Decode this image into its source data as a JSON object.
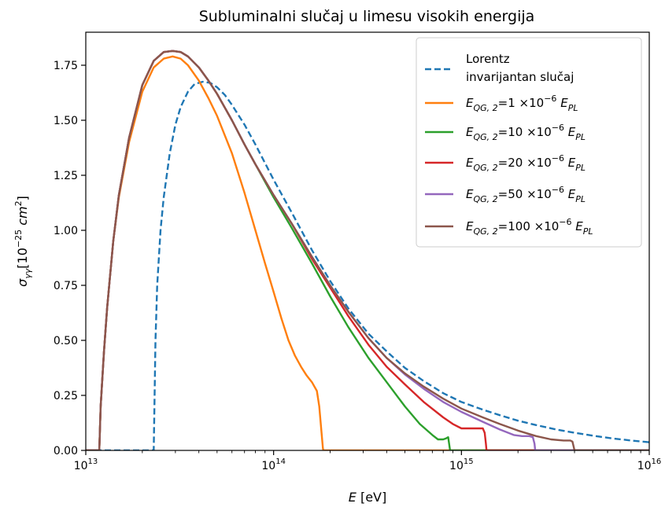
{
  "chart_data": {
    "type": "line",
    "title": "Subluminalni slučaj u limesu visokih energija",
    "xlabel": {
      "symbol": "E",
      "unit": " [eV]"
    },
    "ylabel": {
      "sym": "σ",
      "sub": "γγ",
      "pre": "[10",
      "exp": "−25",
      "unit": " cm",
      "unit_exp": "2",
      "close": "]"
    },
    "x_scale": "log",
    "xlim": [
      10000000000000.0,
      1e+16
    ],
    "ylim": [
      0,
      1.9
    ],
    "x_ticks": [
      {
        "base": "10",
        "exp": "13",
        "value": 10000000000000.0
      },
      {
        "base": "10",
        "exp": "14",
        "value": 100000000000000.0
      },
      {
        "base": "10",
        "exp": "15",
        "value": 1000000000000000.0
      },
      {
        "base": "10",
        "exp": "16",
        "value": 1e+16
      }
    ],
    "y_ticks": [
      "0.00",
      "0.25",
      "0.50",
      "0.75",
      "1.00",
      "1.25",
      "1.50",
      "1.75"
    ],
    "legend_position": "top-right",
    "series": [
      {
        "name": [
          "Lorentz",
          "invarijantan slučaj"
        ],
        "color": "#1f77b4",
        "dash": true,
        "x": [
          10000000000000.0,
          23000000000000.0,
          23200000000000.0,
          23500000000000.0,
          24000000000000.0,
          25000000000000.0,
          26000000000000.0,
          28000000000000.0,
          30000000000000.0,
          32000000000000.0,
          35000000000000.0,
          38000000000000.0,
          42000000000000.0,
          46000000000000.0,
          50000000000000.0,
          55000000000000.0,
          60000000000000.0,
          70000000000000.0,
          80000000000000.0,
          100000000000000.0,
          125000000000000.0,
          160000000000000.0,
          200000000000000.0,
          250000000000000.0,
          320000000000000.0,
          400000000000000.0,
          500000000000000.0,
          630000000000000.0,
          800000000000000.0,
          1000000000000000.0,
          1300000000000000.0,
          1600000000000000.0,
          2000000000000000.0,
          2500000000000000.0,
          3200000000000000.0,
          4000000000000000.0,
          5000000000000000.0,
          6300000000000000.0,
          8000000000000000.0,
          1e+16
        ],
        "y": [
          0,
          0,
          0.2,
          0.5,
          0.75,
          1.0,
          1.15,
          1.35,
          1.48,
          1.56,
          1.63,
          1.665,
          1.675,
          1.67,
          1.65,
          1.615,
          1.57,
          1.48,
          1.39,
          1.23,
          1.08,
          0.91,
          0.77,
          0.645,
          0.53,
          0.45,
          0.375,
          0.315,
          0.26,
          0.22,
          0.185,
          0.16,
          0.135,
          0.115,
          0.095,
          0.08,
          0.067,
          0.055,
          0.045,
          0.037
        ]
      },
      {
        "name": {
          "sym": "E",
          "sub": "QG, 2",
          "val": "=1 ×10",
          "exp": "−6",
          "unit": "E",
          "unit_sub": "PL"
        },
        "color": "#ff7f0e",
        "x": [
          10000000000000.0,
          11800000000000.0,
          12000000000000.0,
          12500000000000.0,
          13000000000000.0,
          14000000000000.0,
          15000000000000.0,
          17000000000000.0,
          20000000000000.0,
          23000000000000.0,
          26000000000000.0,
          29000000000000.0,
          32000000000000.0,
          35000000000000.0,
          40000000000000.0,
          45000000000000.0,
          50000000000000.0,
          60000000000000.0,
          70000000000000.0,
          80000000000000.0,
          90000000000000.0,
          100000000000000.0,
          110000000000000.0,
          120000000000000.0,
          130000000000000.0,
          140000000000000.0,
          150000000000000.0,
          160000000000000.0,
          170000000000000.0,
          175000000000000.0,
          180000000000000.0,
          183000000000000.0,
          184000000000000.0,
          1e+16
        ],
        "y": [
          0,
          0,
          0.2,
          0.45,
          0.65,
          0.95,
          1.15,
          1.4,
          1.63,
          1.74,
          1.78,
          1.79,
          1.78,
          1.75,
          1.68,
          1.6,
          1.52,
          1.35,
          1.17,
          1.0,
          0.85,
          0.72,
          0.6,
          0.5,
          0.43,
          0.38,
          0.34,
          0.31,
          0.27,
          0.2,
          0.08,
          0.01,
          0,
          0
        ]
      },
      {
        "name": {
          "sym": "E",
          "sub": "QG, 2",
          "val": "=10 ×10",
          "exp": "−6",
          "unit": "E",
          "unit_sub": "PL"
        },
        "color": "#2ca02c",
        "x": [
          10000000000000.0,
          11800000000000.0,
          12000000000000.0,
          12500000000000.0,
          13000000000000.0,
          14000000000000.0,
          15000000000000.0,
          17000000000000.0,
          20000000000000.0,
          23000000000000.0,
          26000000000000.0,
          29000000000000.0,
          32000000000000.0,
          35000000000000.0,
          40000000000000.0,
          45000000000000.0,
          50000000000000.0,
          60000000000000.0,
          70000000000000.0,
          80000000000000.0,
          100000000000000.0,
          125000000000000.0,
          160000000000000.0,
          200000000000000.0,
          250000000000000.0,
          320000000000000.0,
          400000000000000.0,
          500000000000000.0,
          600000000000000.0,
          700000000000000.0,
          750000000000000.0,
          800000000000000.0,
          830000000000000.0,
          850000000000000.0,
          860000000000000.0,
          870000000000000.0,
          1e+16
        ],
        "y": [
          0,
          0,
          0.2,
          0.45,
          0.65,
          0.95,
          1.16,
          1.42,
          1.66,
          1.77,
          1.81,
          1.815,
          1.81,
          1.79,
          1.74,
          1.68,
          1.62,
          1.5,
          1.39,
          1.3,
          1.15,
          1.01,
          0.85,
          0.7,
          0.56,
          0.42,
          0.31,
          0.2,
          0.12,
          0.07,
          0.05,
          0.05,
          0.055,
          0.06,
          0.03,
          0,
          0
        ]
      },
      {
        "name": {
          "sym": "E",
          "sub": "QG, 2",
          "val": "=20 ×10",
          "exp": "−6",
          "unit": "E",
          "unit_sub": "PL"
        },
        "color": "#d62728",
        "x": [
          10000000000000.0,
          11800000000000.0,
          12000000000000.0,
          12500000000000.0,
          13000000000000.0,
          14000000000000.0,
          15000000000000.0,
          17000000000000.0,
          20000000000000.0,
          23000000000000.0,
          26000000000000.0,
          29000000000000.0,
          32000000000000.0,
          35000000000000.0,
          40000000000000.0,
          45000000000000.0,
          50000000000000.0,
          60000000000000.0,
          70000000000000.0,
          80000000000000.0,
          100000000000000.0,
          125000000000000.0,
          160000000000000.0,
          200000000000000.0,
          250000000000000.0,
          320000000000000.0,
          400000000000000.0,
          500000000000000.0,
          630000000000000.0,
          800000000000000.0,
          900000000000000.0,
          1000000000000000.0,
          1100000000000000.0,
          1200000000000000.0,
          1300000000000000.0,
          1330000000000000.0,
          1350000000000000.0,
          1360000000000000.0,
          1e+16
        ],
        "y": [
          0,
          0,
          0.2,
          0.45,
          0.65,
          0.95,
          1.16,
          1.42,
          1.66,
          1.77,
          1.81,
          1.815,
          1.81,
          1.79,
          1.74,
          1.68,
          1.62,
          1.5,
          1.39,
          1.3,
          1.16,
          1.03,
          0.87,
          0.74,
          0.61,
          0.48,
          0.38,
          0.3,
          0.22,
          0.15,
          0.12,
          0.1,
          0.1,
          0.1,
          0.1,
          0.08,
          0.03,
          0,
          0
        ]
      },
      {
        "name": {
          "sym": "E",
          "sub": "QG, 2",
          "val": "=50 ×10",
          "exp": "−6",
          "unit": "E",
          "unit_sub": "PL"
        },
        "color": "#9467bd",
        "x": [
          10000000000000.0,
          11800000000000.0,
          12000000000000.0,
          12500000000000.0,
          13000000000000.0,
          14000000000000.0,
          15000000000000.0,
          17000000000000.0,
          20000000000000.0,
          23000000000000.0,
          26000000000000.0,
          29000000000000.0,
          32000000000000.0,
          35000000000000.0,
          40000000000000.0,
          45000000000000.0,
          50000000000000.0,
          60000000000000.0,
          70000000000000.0,
          80000000000000.0,
          100000000000000.0,
          125000000000000.0,
          160000000000000.0,
          200000000000000.0,
          250000000000000.0,
          320000000000000.0,
          400000000000000.0,
          500000000000000.0,
          630000000000000.0,
          800000000000000.0,
          1000000000000000.0,
          1300000000000000.0,
          1600000000000000.0,
          1900000000000000.0,
          2100000000000000.0,
          2300000000000000.0,
          2400000000000000.0,
          2450000000000000.0,
          2470000000000000.0,
          1e+16
        ],
        "y": [
          0,
          0,
          0.2,
          0.45,
          0.65,
          0.95,
          1.16,
          1.42,
          1.66,
          1.77,
          1.81,
          1.815,
          1.81,
          1.79,
          1.74,
          1.68,
          1.62,
          1.5,
          1.39,
          1.3,
          1.16,
          1.03,
          0.88,
          0.75,
          0.63,
          0.51,
          0.42,
          0.345,
          0.28,
          0.22,
          0.175,
          0.13,
          0.095,
          0.07,
          0.065,
          0.065,
          0.06,
          0.03,
          0,
          0
        ]
      },
      {
        "name": {
          "sym": "E",
          "sub": "QG, 2",
          "val": "=100 ×10",
          "exp": "−6",
          "unit": "E",
          "unit_sub": "PL"
        },
        "color": "#8c564b",
        "x": [
          10000000000000.0,
          11800000000000.0,
          12000000000000.0,
          12500000000000.0,
          13000000000000.0,
          14000000000000.0,
          15000000000000.0,
          17000000000000.0,
          20000000000000.0,
          23000000000000.0,
          26000000000000.0,
          29000000000000.0,
          32000000000000.0,
          35000000000000.0,
          40000000000000.0,
          45000000000000.0,
          50000000000000.0,
          60000000000000.0,
          70000000000000.0,
          80000000000000.0,
          100000000000000.0,
          125000000000000.0,
          160000000000000.0,
          200000000000000.0,
          250000000000000.0,
          320000000000000.0,
          400000000000000.0,
          500000000000000.0,
          630000000000000.0,
          800000000000000.0,
          1000000000000000.0,
          1300000000000000.0,
          1600000000000000.0,
          2000000000000000.0,
          2500000000000000.0,
          3000000000000000.0,
          3500000000000000.0,
          3800000000000000.0,
          3900000000000000.0,
          3950000000000000.0,
          4000000000000000.0,
          1e+16
        ],
        "y": [
          0,
          0,
          0.2,
          0.45,
          0.65,
          0.95,
          1.16,
          1.42,
          1.66,
          1.77,
          1.81,
          1.815,
          1.81,
          1.79,
          1.74,
          1.68,
          1.62,
          1.5,
          1.39,
          1.3,
          1.16,
          1.03,
          0.88,
          0.75,
          0.63,
          0.51,
          0.42,
          0.35,
          0.29,
          0.235,
          0.19,
          0.15,
          0.12,
          0.09,
          0.065,
          0.05,
          0.045,
          0.045,
          0.04,
          0.02,
          0,
          0
        ]
      }
    ]
  }
}
